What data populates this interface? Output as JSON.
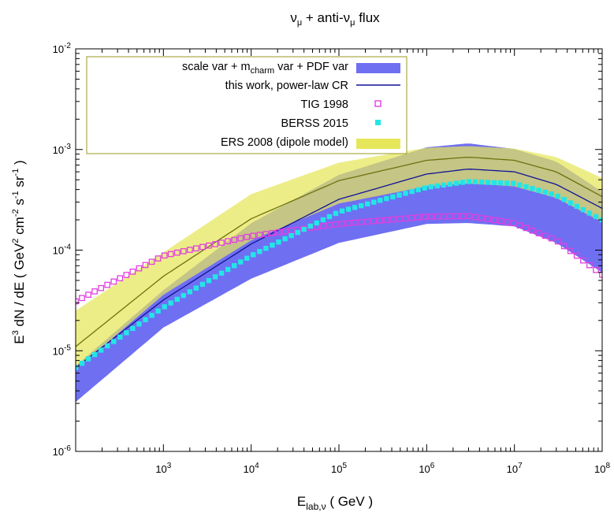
{
  "chart_data": {
    "type": "line",
    "title": {
      "pre": "ν",
      "pre_sub": "μ",
      "mid": " + anti-ν",
      "mid_sub": "μ",
      "post": "  flux"
    },
    "xlabel": {
      "pre": "E",
      "sub": "lab,ν",
      "post": "    ( GeV )"
    },
    "ylabel": {
      "a": "E",
      "a_sup": "3",
      "b": " dN / dE    ( GeV",
      "b_sup": "2",
      "c": " cm",
      "c_sup": "-2",
      "d": " s",
      "d_sup": "-1",
      "e": " sr",
      "e_sup": "-1",
      "f": " )"
    },
    "x_scale": "log",
    "y_scale": "log",
    "xlim": [
      100,
      100000000
    ],
    "ylim": [
      1e-06,
      0.01
    ],
    "x_ticks": [
      {
        "value": 1000,
        "base": "10",
        "exp": "3"
      },
      {
        "value": 10000,
        "base": "10",
        "exp": "4"
      },
      {
        "value": 100000,
        "base": "10",
        "exp": "5"
      },
      {
        "value": 1000000,
        "base": "10",
        "exp": "6"
      },
      {
        "value": 10000000,
        "base": "10",
        "exp": "7"
      },
      {
        "value": 100000000,
        "base": "10",
        "exp": "8"
      }
    ],
    "y_ticks": [
      {
        "value": 1e-06,
        "base": "10",
        "exp": "-6"
      },
      {
        "value": 1e-05,
        "base": "10",
        "exp": "-5"
      },
      {
        "value": 0.0001,
        "base": "10",
        "exp": "-4"
      },
      {
        "value": 0.001,
        "base": "10",
        "exp": "-3"
      },
      {
        "value": 0.01,
        "base": "10",
        "exp": "-2"
      }
    ],
    "grid": false,
    "legend_position": "top-left",
    "legend": [
      {
        "pre": "scale var + m",
        "sub": "charm",
        "post": " var + PDF var",
        "style": "band",
        "color": "#7070f0"
      },
      {
        "pre": "this work, power-law CR",
        "sub": "",
        "post": "",
        "style": "line",
        "color": "#1010a0"
      },
      {
        "pre": "TIG 1998",
        "sub": "",
        "post": "",
        "style": "open-square",
        "color": "#e040e0"
      },
      {
        "pre": "BERSS 2015",
        "sub": "",
        "post": "",
        "style": "filled-square",
        "color": "#20e0e0"
      },
      {
        "pre": "ERS 2008 (dipole model)",
        "sub": "",
        "post": "",
        "style": "band",
        "color": "#e8e860"
      }
    ],
    "series": [
      {
        "name": "scale var + m_charm var + PDF var",
        "kind": "band",
        "color": "#6f6ff2",
        "x": [
          100,
          1000,
          10000,
          100000,
          1000000,
          3000000,
          10000000,
          30000000,
          100000000
        ],
        "lower": [
          3.1e-06,
          1.7e-05,
          5.2e-05,
          0.000118,
          0.000182,
          0.000186,
          0.000172,
          0.000118,
          6e-05
        ],
        "upper": [
          7.1e-06,
          4e-05,
          0.000185,
          0.00056,
          0.00105,
          0.00115,
          0.00101,
          0.00076,
          0.00038
        ]
      },
      {
        "name": "ERS 2008 (dipole model)",
        "kind": "band",
        "color": "#e6e65a",
        "opacity": 0.72,
        "x": [
          100,
          1000,
          10000,
          100000,
          1000000,
          3000000,
          10000000,
          30000000,
          100000000
        ],
        "lower": [
          6.5e-06,
          3.6e-05,
          0.000125,
          0.00029,
          0.00043,
          0.00046,
          0.00043,
          0.00033,
          0.00019
        ],
        "upper": [
          2.5e-05,
          9.5e-05,
          0.00036,
          0.00074,
          0.00104,
          0.00108,
          0.00102,
          0.00084,
          0.00052
        ]
      },
      {
        "name": "ERS 2008 central",
        "kind": "line",
        "color": "#6f6f10",
        "x": [
          100,
          1000,
          10000,
          100000,
          1000000,
          3000000,
          10000000,
          30000000,
          100000000
        ],
        "y": [
          1.1e-05,
          5.5e-05,
          0.000205,
          0.00049,
          0.00078,
          0.00084,
          0.00078,
          0.0006,
          0.00034
        ]
      },
      {
        "name": "this work, power-law CR",
        "kind": "line",
        "color": "#121298",
        "x": [
          100,
          1000,
          10000,
          100000,
          1000000,
          3000000,
          10000000,
          30000000,
          100000000
        ],
        "y": [
          6.8e-06,
          3.2e-05,
          0.000115,
          0.00032,
          0.00057,
          0.00064,
          0.0006,
          0.00045,
          0.00026
        ]
      },
      {
        "name": "TIG 1998",
        "kind": "open-square",
        "color": "#e040e0",
        "x": [
          100,
          1000,
          10000,
          100000,
          1000000,
          3000000,
          10000000,
          30000000,
          100000000
        ],
        "y": [
          3.1e-05,
          8.8e-05,
          0.000138,
          0.000182,
          0.000215,
          0.000218,
          0.000185,
          0.000125,
          5.7e-05
        ]
      },
      {
        "name": "BERSS 2015",
        "kind": "filled-square",
        "color": "#22e6e6",
        "x": [
          100,
          1000,
          10000,
          100000,
          1000000,
          3000000,
          10000000,
          30000000,
          100000000
        ],
        "y": [
          6.8e-06,
          2.7e-05,
          8.8e-05,
          0.00024,
          0.00042,
          0.00048,
          0.00046,
          0.00035,
          0.0002
        ]
      }
    ]
  }
}
